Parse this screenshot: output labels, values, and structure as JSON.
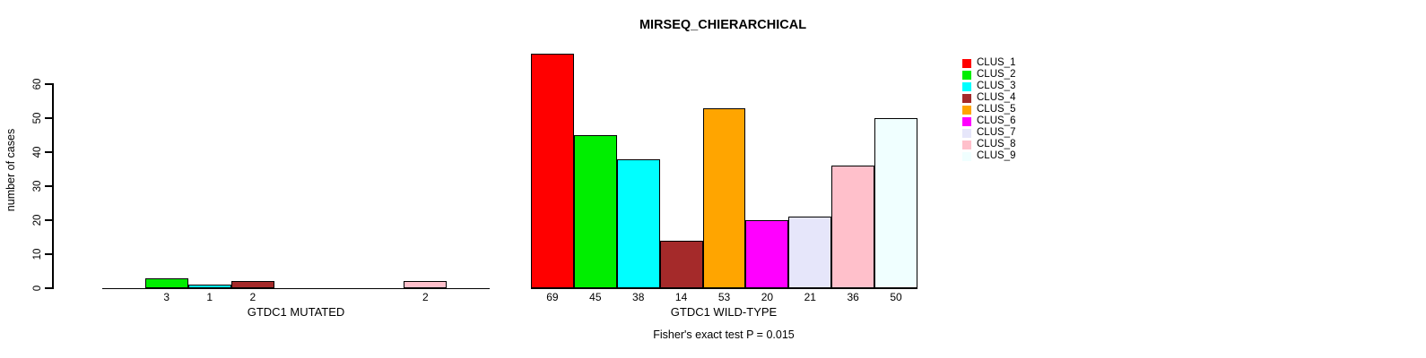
{
  "title": "MIRSEQ_CHIERARCHICAL",
  "subtitle": "Fisher's exact test P = 0.015",
  "y_axis": {
    "label": "number of cases",
    "ticks": [
      0,
      10,
      20,
      30,
      40,
      50,
      60
    ]
  },
  "clusters": [
    {
      "label": "CLUS_1",
      "color": "#FF0000"
    },
    {
      "label": "CLUS_2",
      "color": "#00EE00"
    },
    {
      "label": "CLUS_3",
      "color": "#00FFFF"
    },
    {
      "label": "CLUS_4",
      "color": "#A52A2A"
    },
    {
      "label": "CLUS_5",
      "color": "#FFA500"
    },
    {
      "label": "CLUS_6",
      "color": "#FF00FF"
    },
    {
      "label": "CLUS_7",
      "color": "#E6E6FA"
    },
    {
      "label": "CLUS_8",
      "color": "#FFC0CB"
    },
    {
      "label": "CLUS_9",
      "color": "#F0FFFF"
    }
  ],
  "chart_data": [
    {
      "type": "bar",
      "panel": "mutated",
      "xlabel": "GTDC1 MUTATED",
      "categories": [
        "CLUS_1",
        "CLUS_2",
        "CLUS_3",
        "CLUS_4",
        "CLUS_5",
        "CLUS_6",
        "CLUS_7",
        "CLUS_8",
        "CLUS_9"
      ],
      "values": [
        0,
        3,
        1,
        2,
        0,
        0,
        0,
        2,
        0
      ],
      "bar_labels": [
        "",
        "3",
        "1",
        "2",
        "",
        "",
        "",
        "2",
        ""
      ],
      "ylim": [
        0,
        60
      ],
      "grid": false,
      "legend_position": "right"
    },
    {
      "type": "bar",
      "panel": "wild-type",
      "xlabel": "GTDC1 WILD-TYPE",
      "categories": [
        "CLUS_1",
        "CLUS_2",
        "CLUS_3",
        "CLUS_4",
        "CLUS_5",
        "CLUS_6",
        "CLUS_7",
        "CLUS_8",
        "CLUS_9"
      ],
      "values": [
        69,
        45,
        38,
        14,
        53,
        20,
        21,
        36,
        50
      ],
      "bar_labels": [
        "69",
        "45",
        "38",
        "14",
        "53",
        "20",
        "21",
        "36",
        "50"
      ],
      "ylim": [
        0,
        60
      ],
      "grid": false,
      "legend_position": "right"
    }
  ]
}
